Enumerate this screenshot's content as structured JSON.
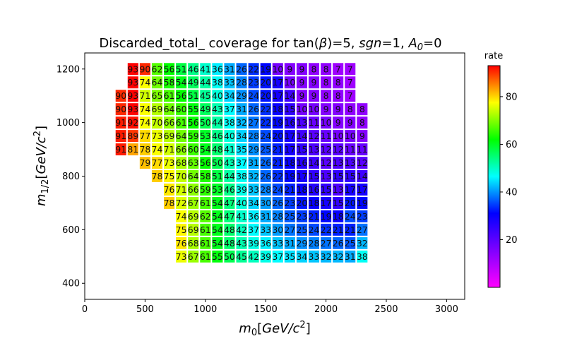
{
  "chart_data": {
    "type": "heatmap",
    "title_parts": [
      "Discarded_total_ coverage for tan(",
      "β",
      ")=5, ",
      "sgn",
      "=1, ",
      "A",
      "0",
      "=0"
    ],
    "title": "Discarded_total_ coverage for tan(β)=5, sgn=1, A0=0",
    "xlabel_parts": [
      "m",
      "0",
      "[",
      "GeV/c",
      "2",
      "]"
    ],
    "ylabel_parts": [
      "m",
      "1/2",
      "[",
      "GeV/c",
      "2",
      "]"
    ],
    "colorbar_label": "rate",
    "xlim": [
      0,
      3150
    ],
    "ylim": [
      340,
      1260
    ],
    "x_ticks": [
      0,
      500,
      1000,
      1500,
      2000,
      2500,
      3000
    ],
    "y_ticks": [
      400,
      600,
      800,
      1000,
      1200
    ],
    "colorbar_ticks": [
      20,
      40,
      60,
      80
    ],
    "color_range": [
      0,
      93
    ],
    "cell_size": [
      100,
      50
    ],
    "rows": [
      {
        "y": 1200,
        "x_start": 400,
        "values": [
          93,
          90,
          62,
          56,
          51,
          46,
          41,
          36,
          31,
          26,
          22,
          19,
          10,
          9,
          9,
          8,
          8,
          7,
          7
        ]
      },
      {
        "y": 1150,
        "x_start": 400,
        "values": [
          93,
          74,
          64,
          58,
          54,
          49,
          44,
          38,
          33,
          28,
          23,
          20,
          17,
          10,
          9,
          9,
          8,
          8,
          7
        ]
      },
      {
        "y": 1100,
        "x_start": 300,
        "values": [
          90,
          93,
          71,
          65,
          61,
          56,
          51,
          45,
          40,
          34,
          29,
          24,
          20,
          17,
          14,
          9,
          9,
          8,
          8,
          7
        ]
      },
      {
        "y": 1050,
        "x_start": 300,
        "values": [
          90,
          93,
          74,
          69,
          64,
          60,
          55,
          49,
          43,
          37,
          31,
          26,
          22,
          18,
          15,
          10,
          10,
          9,
          9,
          8,
          8
        ]
      },
      {
        "y": 1000,
        "x_start": 300,
        "values": [
          91,
          92,
          74,
          70,
          66,
          61,
          56,
          50,
          44,
          38,
          32,
          27,
          22,
          19,
          16,
          13,
          11,
          10,
          9,
          9,
          8
        ]
      },
      {
        "y": 950,
        "x_start": 300,
        "values": [
          91,
          89,
          77,
          73,
          69,
          64,
          59,
          53,
          46,
          40,
          34,
          28,
          24,
          20,
          17,
          14,
          12,
          11,
          10,
          10,
          9
        ]
      },
      {
        "y": 900,
        "x_start": 300,
        "values": [
          91,
          81,
          78,
          74,
          71,
          66,
          60,
          54,
          48,
          41,
          35,
          29,
          25,
          21,
          17,
          15,
          13,
          12,
          12,
          11,
          11
        ]
      },
      {
        "y": 850,
        "x_start": 500,
        "values": [
          79,
          77,
          73,
          68,
          63,
          56,
          50,
          43,
          37,
          31,
          26,
          21,
          18,
          16,
          14,
          12,
          13,
          13,
          12
        ]
      },
      {
        "y": 800,
        "x_start": 600,
        "values": [
          78,
          75,
          70,
          64,
          58,
          51,
          44,
          38,
          32,
          26,
          22,
          19,
          17,
          15,
          13,
          15,
          15,
          14
        ]
      },
      {
        "y": 750,
        "x_start": 700,
        "values": [
          76,
          71,
          66,
          59,
          53,
          46,
          39,
          33,
          28,
          24,
          21,
          18,
          16,
          15,
          13,
          17,
          17
        ]
      },
      {
        "y": 700,
        "x_start": 700,
        "values": [
          78,
          72,
          67,
          61,
          54,
          47,
          40,
          34,
          30,
          26,
          23,
          20,
          18,
          17,
          15,
          20,
          19
        ]
      },
      {
        "y": 650,
        "x_start": 800,
        "values": [
          74,
          69,
          62,
          54,
          47,
          41,
          36,
          31,
          28,
          25,
          23,
          21,
          19,
          18,
          24,
          23
        ]
      },
      {
        "y": 600,
        "x_start": 800,
        "values": [
          75,
          69,
          61,
          54,
          48,
          42,
          37,
          33,
          30,
          27,
          25,
          24,
          22,
          21,
          21,
          27
        ]
      },
      {
        "y": 550,
        "x_start": 800,
        "values": [
          76,
          68,
          61,
          54,
          48,
          43,
          39,
          36,
          33,
          31,
          29,
          28,
          27,
          26,
          25,
          32
        ]
      },
      {
        "y": 500,
        "x_start": 800,
        "values": [
          73,
          67,
          61,
          55,
          50,
          45,
          42,
          39,
          37,
          35,
          34,
          33,
          32,
          32,
          31,
          38
        ]
      }
    ]
  }
}
